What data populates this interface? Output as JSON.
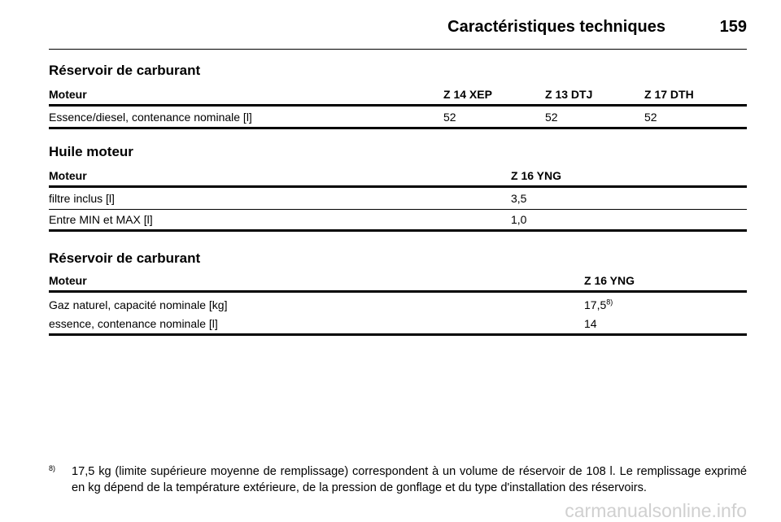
{
  "header": {
    "title": "Caractéristiques techniques",
    "page": "159"
  },
  "sections": [
    {
      "title": "Réservoir de carburant",
      "columns": [
        "Moteur",
        "Z 14 XEP",
        "Z 13 DTJ",
        "Z 17 DTH"
      ],
      "rows": [
        [
          "Essence/diesel, contenance nominale [l]",
          "52",
          "52",
          "52"
        ]
      ]
    },
    {
      "title": "Huile moteur",
      "columns": [
        "Moteur",
        "Z 16 YNG"
      ],
      "rows": [
        [
          "filtre inclus [l]",
          "3,5"
        ],
        [
          "Entre MIN et MAX [l]",
          "1,0"
        ]
      ]
    },
    {
      "title": "Réservoir de carburant",
      "columns": [
        "Moteur",
        "Z 16 YNG"
      ],
      "rows": [
        [
          "Gaz naturel, capacité nominale [kg]",
          {
            "text": "17,5",
            "note": "8)"
          }
        ],
        [
          "essence, contenance nominale [l]",
          "14"
        ]
      ]
    }
  ],
  "footnote": {
    "marker": "8)",
    "text": "17,5 kg (limite supérieure moyenne de remplissage) correspondent à un volume de réservoir de 108 l. Le remplissage exprimé en kg dépend de la température extérieure, de la pression de gonflage et du type d'installation des réservoirs."
  },
  "watermark": "carmanualsonline.info"
}
